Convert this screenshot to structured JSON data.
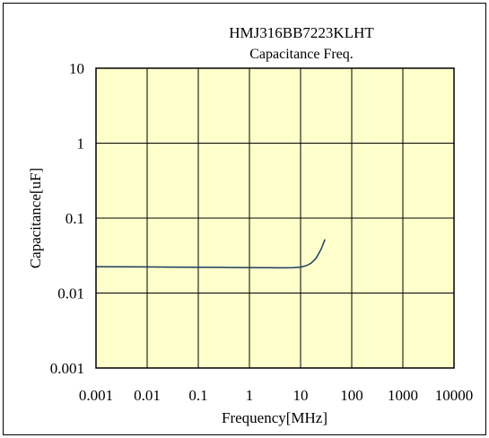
{
  "chart_data": {
    "type": "line",
    "title": "HMJ316BB7223KLHT",
    "subtitle": "Capacitance Freq.",
    "xlabel": "Frequency[MHz]",
    "ylabel": "Capacitance[uF]",
    "x_scale": "log",
    "y_scale": "log",
    "xlim": [
      0.001,
      10000
    ],
    "ylim": [
      0.001,
      10
    ],
    "x_ticks": [
      "0.001",
      "0.01",
      "0.1",
      "1",
      "10",
      "100",
      "1000",
      "10000"
    ],
    "y_ticks": [
      "0.001",
      "0.01",
      "0.1",
      "1",
      "10"
    ],
    "grid": true,
    "plot_background": "#ffffcc",
    "series": [
      {
        "color": "#1f3a5f",
        "x": [
          0.001,
          0.003,
          0.01,
          0.03,
          0.1,
          0.3,
          1,
          2,
          4,
          7,
          10,
          13,
          16,
          20,
          25,
          30
        ],
        "y": [
          0.0225,
          0.0224,
          0.0223,
          0.0222,
          0.0221,
          0.022,
          0.0219,
          0.0218,
          0.0217,
          0.0218,
          0.0222,
          0.0232,
          0.025,
          0.029,
          0.038,
          0.052
        ]
      }
    ]
  }
}
